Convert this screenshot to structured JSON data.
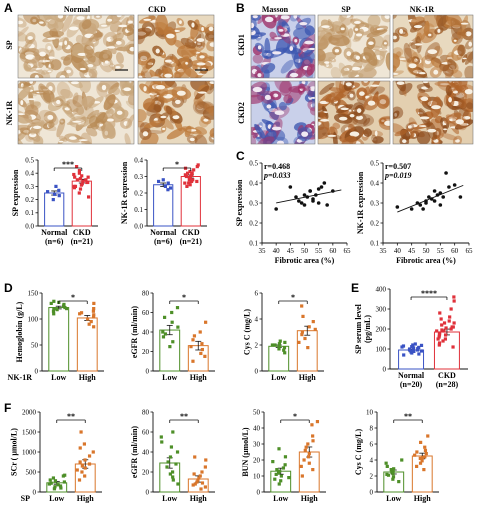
{
  "panel_letters": {
    "a": "A",
    "b": "B",
    "c": "C",
    "d": "D",
    "e": "E",
    "f": "F"
  },
  "colors": {
    "normal": "#3a53c4",
    "ckd": "#e0313a",
    "low": "#4e8f28",
    "high": "#d9762b",
    "masson_blue": "#3b56b0",
    "ihc_brown": "#b86d2c",
    "tissue_bg": "#e9dcc7"
  },
  "panel_a": {
    "col_labels": [
      "Normal",
      "CKD"
    ],
    "row_labels": [
      "SP",
      "NK-1R"
    ],
    "charts": [
      {
        "ylabel": "SP expression",
        "sig": "***",
        "yticks": [
          "0.0",
          "0.1",
          "0.2",
          "0.3",
          "0.4",
          "0.5"
        ],
        "cats": [
          "Normal",
          "CKD"
        ],
        "ns": [
          "(n=6)",
          "(n=21)"
        ]
      },
      {
        "ylabel": "NK-1R expression",
        "sig": "*",
        "yticks": [
          "0.0",
          "0.1",
          "0.2",
          "0.3",
          "0.4"
        ],
        "cats": [
          "Normal",
          "CKD"
        ],
        "ns": [
          "(n=6)",
          "(n=21)"
        ]
      }
    ]
  },
  "panel_b": {
    "col_labels": [
      "Masson",
      "SP",
      "NK-1R"
    ],
    "row_labels": [
      "CKD1",
      "CKD2"
    ]
  },
  "panel_c": [
    {
      "r": "r=0.468",
      "p": "p=0.033",
      "ylabel": "SP expression",
      "xlabel": "Fibrotic area (%)",
      "xticks": [
        "35",
        "40",
        "45",
        "50",
        "55",
        "60",
        "65"
      ],
      "yticks": [
        "0.1",
        "0.2",
        "0.3",
        "0.4",
        "0.5"
      ]
    },
    {
      "r": "r=0.507",
      "p": "p=0.019",
      "ylabel": "NK-1R expression",
      "xlabel": "Fibrotic area (%)",
      "xticks": [
        "35",
        "40",
        "45",
        "50",
        "55",
        "60",
        "65"
      ],
      "yticks": [
        "0.1",
        "0.2",
        "0.3",
        "0.4",
        "0.5"
      ]
    }
  ],
  "panel_d": {
    "group_axis_label": "NK-1R",
    "charts": [
      {
        "ylabel": "Hemoglobin (g/L)",
        "sig": "*",
        "yticks": [
          "0",
          "50",
          "100",
          "150"
        ],
        "cats": [
          "Low",
          "High"
        ]
      },
      {
        "ylabel": "eGFR (ml/min)",
        "sig": "*",
        "yticks": [
          "0",
          "20",
          "40",
          "60",
          "80"
        ],
        "cats": [
          "Low",
          "High"
        ]
      },
      {
        "ylabel": "Cys C (mg/L)",
        "sig": "*",
        "yticks": [
          "0",
          "2",
          "4",
          "6"
        ],
        "cats": [
          "Low",
          "High"
        ]
      }
    ]
  },
  "panel_e": {
    "ylabel": "SP serum level\n(pg/mL)",
    "sig": "****",
    "yticks": [
      "0",
      "100",
      "200",
      "300",
      "400"
    ],
    "cats": [
      "Normal",
      "CKD"
    ],
    "ns": [
      "(n=20)",
      "(n=28)"
    ]
  },
  "panel_f": {
    "group_axis_label": "SP",
    "charts": [
      {
        "ylabel": "SCr ( μmol/L)",
        "sig": "**",
        "yticks": [
          "0",
          "500",
          "1000",
          "1500",
          "2000"
        ],
        "cats": [
          "Low",
          "High"
        ]
      },
      {
        "ylabel": "eGFR (ml/min)",
        "sig": "**",
        "yticks": [
          "0",
          "20",
          "40",
          "60",
          "80"
        ],
        "cats": [
          "Low",
          "High"
        ]
      },
      {
        "ylabel": "BUN (μmol/L)",
        "sig": "*",
        "yticks": [
          "0",
          "10",
          "20",
          "30",
          "40",
          "50"
        ],
        "cats": [
          "Low",
          "High"
        ]
      },
      {
        "ylabel": "Cys C (mg/L)",
        "sig": "**",
        "yticks": [
          "0",
          "2",
          "4",
          "6",
          "8",
          "10"
        ],
        "cats": [
          "Low",
          "High"
        ]
      }
    ]
  },
  "chart_data": [
    {
      "type": "bar",
      "title": "",
      "ylabel": "SP expression",
      "ylim": [
        0,
        0.5
      ],
      "categories": [
        "Normal",
        "CKD"
      ],
      "values": [
        0.25,
        0.34
      ],
      "points": [
        [
          0.2,
          0.24,
          0.26,
          0.27,
          0.23,
          0.3
        ],
        [
          0.22,
          0.25,
          0.28,
          0.3,
          0.31,
          0.32,
          0.33,
          0.34,
          0.35,
          0.36,
          0.37,
          0.38,
          0.4,
          0.42,
          0.45,
          0.3,
          0.33,
          0.35,
          0.37,
          0.39,
          0.29
        ]
      ]
    },
    {
      "type": "bar",
      "title": "",
      "ylabel": "NK-1R expression",
      "ylim": [
        0,
        0.4
      ],
      "categories": [
        "Normal",
        "CKD"
      ],
      "values": [
        0.25,
        0.3
      ],
      "points": [
        [
          0.22,
          0.24,
          0.26,
          0.27,
          0.23,
          0.28
        ],
        [
          0.24,
          0.25,
          0.26,
          0.27,
          0.28,
          0.29,
          0.3,
          0.31,
          0.32,
          0.33,
          0.34,
          0.35,
          0.36,
          0.28,
          0.29,
          0.3,
          0.31,
          0.32,
          0.27,
          0.26,
          0.37
        ]
      ]
    },
    {
      "type": "scatter",
      "xlabel": "Fibrotic area (%)",
      "ylabel": "SP expression",
      "xlim": [
        35,
        65
      ],
      "ylim": [
        0.1,
        0.5
      ],
      "x": [
        40,
        45,
        47,
        48,
        50,
        51,
        52,
        53,
        54,
        55,
        56,
        57,
        58,
        60,
        52,
        55,
        49,
        50,
        53
      ],
      "y": [
        0.27,
        0.38,
        0.33,
        0.31,
        0.29,
        0.33,
        0.36,
        0.32,
        0.34,
        0.3,
        0.38,
        0.4,
        0.29,
        0.36,
        0.36,
        0.37,
        0.3,
        0.34,
        0.31
      ]
    },
    {
      "type": "scatter",
      "xlabel": "Fibrotic area (%)",
      "ylabel": "NK-1R expression",
      "xlim": [
        35,
        65
      ],
      "ylim": [
        0.1,
        0.5
      ],
      "x": [
        40,
        45,
        47,
        48,
        50,
        51,
        52,
        53,
        54,
        55,
        56,
        57,
        58,
        60,
        62,
        49,
        50,
        53,
        55
      ],
      "y": [
        0.28,
        0.27,
        0.3,
        0.29,
        0.31,
        0.33,
        0.32,
        0.36,
        0.34,
        0.35,
        0.33,
        0.45,
        0.38,
        0.39,
        0.33,
        0.27,
        0.3,
        0.31,
        0.29
      ]
    },
    {
      "type": "bar",
      "ylabel": "Hemoglobin (g/L)",
      "ylim": [
        0,
        150
      ],
      "categories": [
        "Low",
        "High"
      ],
      "values": [
        122,
        102
      ],
      "points": [
        [
          110,
          118,
          120,
          122,
          125,
          128,
          130,
          132,
          134,
          115,
          120
        ],
        [
          85,
          90,
          95,
          100,
          104,
          108,
          110,
          112,
          115,
          120,
          130
        ]
      ]
    },
    {
      "type": "bar",
      "ylabel": "eGFR (ml/min)",
      "ylim": [
        0,
        80
      ],
      "categories": [
        "Low",
        "High"
      ],
      "values": [
        42,
        26
      ],
      "points": [
        [
          25,
          30,
          35,
          40,
          45,
          50,
          55,
          60,
          65,
          38
        ],
        [
          10,
          15,
          18,
          22,
          25,
          28,
          32,
          36,
          40,
          50
        ]
      ]
    },
    {
      "type": "bar",
      "ylabel": "Cys C (mg/L)",
      "ylim": [
        0,
        6
      ],
      "categories": [
        "Low",
        "High"
      ],
      "values": [
        1.9,
        3.1
      ],
      "points": [
        [
          1.4,
          1.6,
          1.8,
          1.9,
          2.0,
          2.1,
          2.2,
          2.3,
          1.7,
          2.0
        ],
        [
          1.8,
          2.2,
          2.5,
          2.8,
          3.0,
          3.4,
          3.8,
          4.2,
          5.0,
          3.2
        ]
      ]
    },
    {
      "type": "bar",
      "ylabel": "SP serum level (pg/mL)",
      "ylim": [
        0,
        400
      ],
      "categories": [
        "Normal",
        "CKD"
      ],
      "values": [
        95,
        185
      ],
      "points": [
        [
          70,
          75,
          80,
          85,
          88,
          90,
          92,
          95,
          98,
          100,
          102,
          105,
          108,
          110,
          112,
          115,
          118,
          120,
          125,
          90
        ],
        [
          110,
          120,
          130,
          140,
          150,
          160,
          170,
          180,
          190,
          200,
          210,
          220,
          230,
          240,
          250,
          260,
          280,
          300,
          340,
          360,
          150,
          170,
          190,
          210,
          230,
          175,
          195,
          205
        ]
      ]
    },
    {
      "type": "bar",
      "ylabel": "SCr ( μmol/L)",
      "ylim": [
        0,
        2000
      ],
      "categories": [
        "Low",
        "High"
      ],
      "values": [
        230,
        700
      ],
      "points": [
        [
          80,
          100,
          130,
          150,
          180,
          200,
          220,
          250,
          280,
          300,
          350,
          400,
          420
        ],
        [
          300,
          400,
          500,
          550,
          600,
          650,
          700,
          750,
          800,
          900,
          1000,
          1100,
          1200,
          1500
        ]
      ]
    },
    {
      "type": "bar",
      "ylabel": "eGFR (ml/min)",
      "ylim": [
        0,
        80
      ],
      "categories": [
        "Low",
        "High"
      ],
      "values": [
        29,
        13
      ],
      "points": [
        [
          8,
          12,
          15,
          20,
          25,
          30,
          35,
          40,
          45,
          50,
          55,
          60,
          18,
          28
        ],
        [
          3,
          5,
          7,
          8,
          10,
          12,
          14,
          16,
          18,
          20,
          25,
          32,
          35,
          9
        ]
      ]
    },
    {
      "type": "bar",
      "ylabel": "BUN (μmol/L)",
      "ylim": [
        0,
        50
      ],
      "categories": [
        "Low",
        "High"
      ],
      "values": [
        13,
        25
      ],
      "points": [
        [
          5,
          7,
          9,
          10,
          12,
          13,
          14,
          15,
          17,
          19,
          22,
          27,
          11,
          8
        ],
        [
          10,
          14,
          18,
          20,
          22,
          24,
          26,
          28,
          30,
          32,
          35,
          42,
          44,
          16
        ]
      ]
    },
    {
      "type": "bar",
      "ylabel": "Cys C (mg/L)",
      "ylim": [
        0,
        10
      ],
      "categories": [
        "Low",
        "High"
      ],
      "values": [
        2.5,
        4.5
      ],
      "points": [
        [
          1.3,
          1.6,
          1.9,
          2.1,
          2.3,
          2.5,
          2.7,
          2.9,
          3.2,
          3.6,
          4.0,
          2.2,
          2.8
        ],
        [
          2.8,
          3.2,
          3.6,
          3.9,
          4.2,
          4.4,
          4.6,
          4.8,
          5.0,
          5.2,
          5.6,
          6.2,
          7.0,
          4.3
        ]
      ]
    }
  ]
}
